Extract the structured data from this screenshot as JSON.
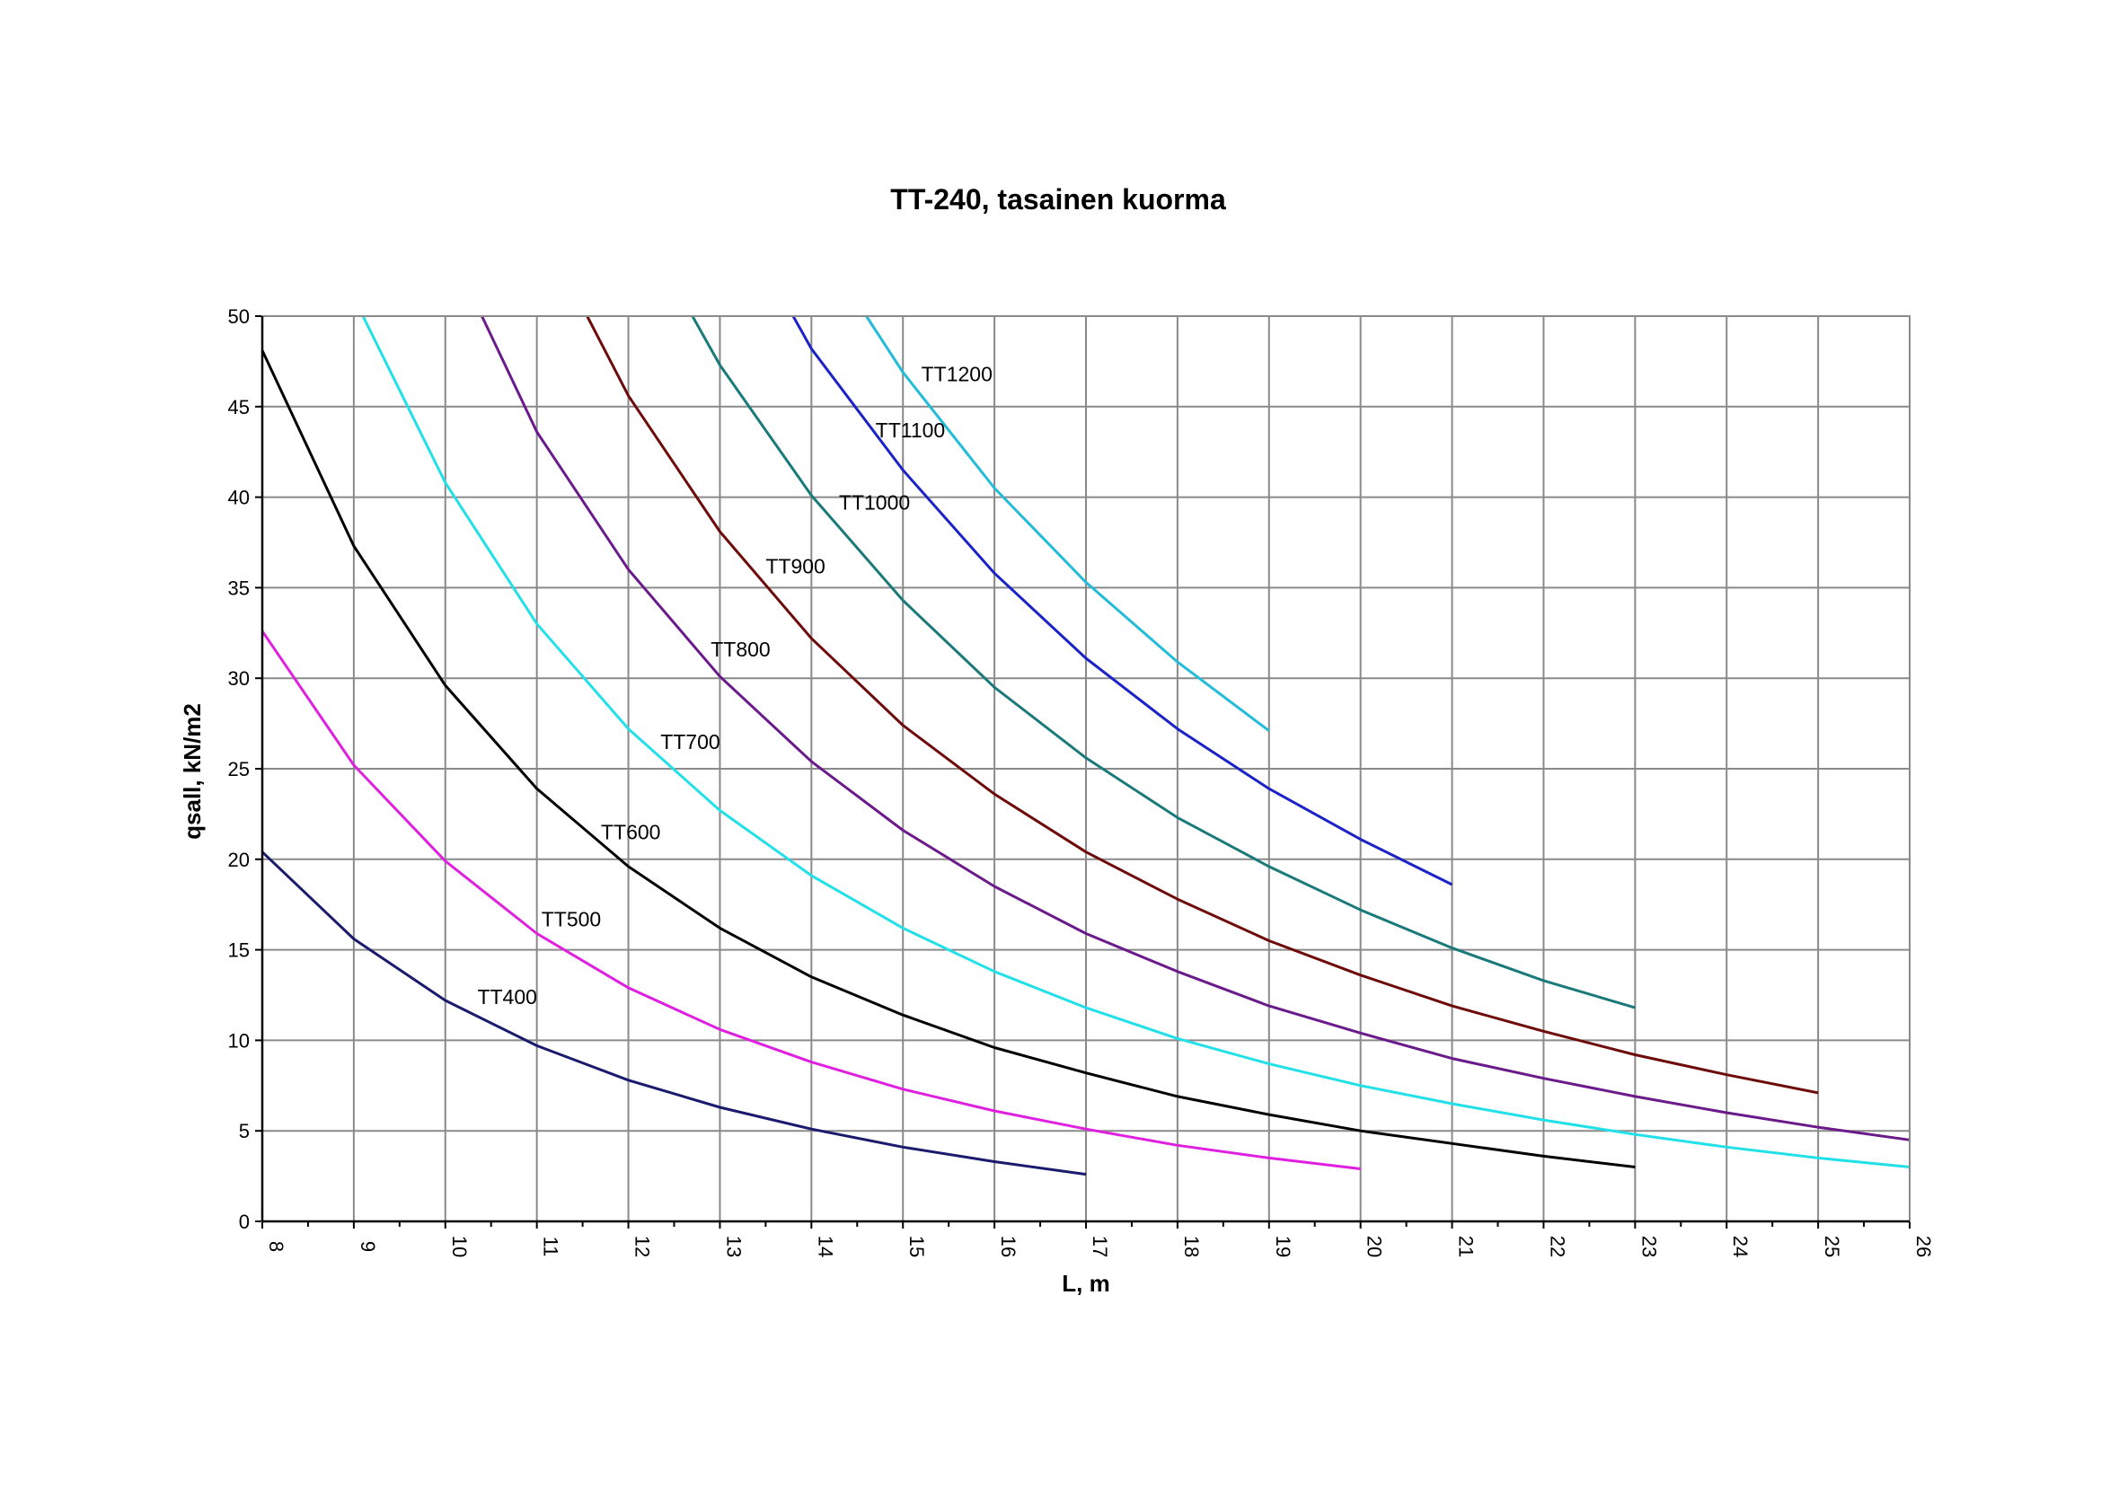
{
  "chart_data": {
    "type": "line",
    "title": "TT-240, tasainen kuorma",
    "xlabel": "L, m",
    "ylabel": "qsall, kN/m2",
    "xlim": [
      8,
      26
    ],
    "ylim": [
      0,
      50
    ],
    "x_ticks": [
      8,
      9,
      10,
      11,
      12,
      13,
      14,
      15,
      16,
      17,
      18,
      19,
      20,
      21,
      22,
      23,
      24,
      25,
      26
    ],
    "y_ticks": [
      0,
      5,
      10,
      15,
      20,
      25,
      30,
      35,
      40,
      45,
      50
    ],
    "grid": true,
    "legend": "inline labels",
    "series": [
      {
        "name": "TT400",
        "color": "#1a1a6e",
        "label_at": [
          10.35,
          12
        ],
        "x": [
          8,
          9,
          10,
          11,
          12,
          13,
          14,
          15,
          16,
          17
        ],
        "y": [
          20.4,
          15.6,
          12.2,
          9.7,
          7.8,
          6.3,
          5.1,
          4.1,
          3.3,
          2.6
        ]
      },
      {
        "name": "TT500",
        "color": "#e020e0",
        "label_at": [
          11.05,
          16.3
        ],
        "x": [
          8,
          9,
          10,
          11,
          12,
          13,
          14,
          15,
          16,
          17,
          18,
          19,
          20
        ],
        "y": [
          32.6,
          25.2,
          19.9,
          15.9,
          12.9,
          10.6,
          8.8,
          7.3,
          6.1,
          5.1,
          4.2,
          3.5,
          2.9
        ]
      },
      {
        "name": "TT600",
        "color": "#000000",
        "label_at": [
          11.7,
          21.1
        ],
        "x": [
          8,
          9,
          10,
          11,
          12,
          13,
          14,
          15,
          16,
          17,
          18,
          19,
          20,
          21,
          22,
          23
        ],
        "y": [
          48.1,
          37.3,
          29.6,
          23.9,
          19.6,
          16.2,
          13.5,
          11.4,
          9.6,
          8.2,
          6.9,
          5.9,
          5.0,
          4.3,
          3.6,
          3.0
        ]
      },
      {
        "name": "TT700",
        "color": "#22e0e8",
        "label_at": [
          12.35,
          26.1
        ],
        "x": [
          9.1,
          10,
          11,
          12,
          13,
          14,
          15,
          16,
          17,
          18,
          19,
          20,
          21,
          22,
          23,
          24,
          25,
          26
        ],
        "y": [
          50,
          40.8,
          33.0,
          27.2,
          22.7,
          19.1,
          16.2,
          13.8,
          11.8,
          10.1,
          8.7,
          7.5,
          6.5,
          5.6,
          4.8,
          4.1,
          3.5,
          3.0
        ]
      },
      {
        "name": "TT800",
        "color": "#6a1a8a",
        "label_at": [
          12.9,
          31.2
        ],
        "x": [
          10.4,
          11,
          12,
          13,
          14,
          15,
          16,
          17,
          18,
          19,
          20,
          21,
          22,
          23,
          24,
          25,
          26
        ],
        "y": [
          50,
          43.6,
          36.0,
          30.1,
          25.4,
          21.6,
          18.5,
          15.9,
          13.8,
          11.9,
          10.4,
          9.0,
          7.9,
          6.9,
          6.0,
          5.2,
          4.5
        ]
      },
      {
        "name": "TT900",
        "color": "#6e0a0a",
        "label_at": [
          13.5,
          35.8
        ],
        "x": [
          11.55,
          12,
          13,
          14,
          15,
          16,
          17,
          18,
          19,
          20,
          21,
          22,
          23,
          24,
          25
        ],
        "y": [
          50,
          45.6,
          38.1,
          32.2,
          27.4,
          23.6,
          20.4,
          17.8,
          15.5,
          13.6,
          11.9,
          10.5,
          9.2,
          8.1,
          7.1
        ]
      },
      {
        "name": "TT1000",
        "color": "#1a7a7a",
        "label_at": [
          14.3,
          39.3
        ],
        "x": [
          12.7,
          13,
          14,
          15,
          16,
          17,
          18,
          19,
          20,
          21,
          22,
          23
        ],
        "y": [
          50,
          47.3,
          40.1,
          34.3,
          29.5,
          25.6,
          22.3,
          19.6,
          17.2,
          15.1,
          13.3,
          11.8
        ]
      },
      {
        "name": "TT1100",
        "color": "#1a22c8",
        "label_at": [
          14.7,
          43.3
        ],
        "x": [
          13.8,
          14,
          15,
          16,
          17,
          18,
          19,
          20,
          21
        ],
        "y": [
          50,
          48.2,
          41.5,
          35.8,
          31.1,
          27.2,
          23.9,
          21.1,
          18.6
        ]
      },
      {
        "name": "TT1200",
        "color": "#22bcd8",
        "label_at": [
          15.2,
          46.4
        ],
        "x": [
          14.6,
          15,
          16,
          17,
          18,
          19
        ],
        "y": [
          50,
          46.9,
          40.5,
          35.3,
          30.9,
          27.1
        ]
      }
    ]
  }
}
